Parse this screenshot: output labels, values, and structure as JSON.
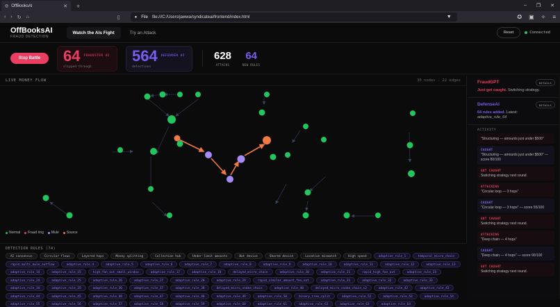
{
  "browser": {
    "tab_title": "OffBooksAI",
    "new_tab": "+",
    "url_label": "File",
    "url": "file:///C:/Users/jawwa/syndicateai/frontend/index.html",
    "window_controls": [
      "–",
      "❐",
      "✕"
    ]
  },
  "header": {
    "brand": "OffBooksAI",
    "subtitle": "FRAUD DETECTION",
    "tabs": [
      {
        "label": "Watch the AIs Fight",
        "active": true
      },
      {
        "label": "Try an Attack",
        "active": false
      }
    ],
    "reset_label": "Reset",
    "status": "Connected",
    "status_color": "#22c55e"
  },
  "stats": {
    "stop_label": "Stop Battle",
    "fraudster": {
      "value": "64",
      "tag": "FRAUDSTER AI",
      "caption": "slipped through",
      "color": "#ec3e63"
    },
    "defender": {
      "value": "564",
      "tag": "DEFENDER AI",
      "caption": "detections",
      "color": "#7c5cf0"
    },
    "attacks": {
      "value": "628",
      "label": "ATTACKS"
    },
    "new_rules": {
      "value": "64",
      "label": "NEW RULES"
    }
  },
  "graph": {
    "title": "LIVE MONEY FLOW",
    "meta": "30 nodes · 22 edges",
    "legend": [
      {
        "label": "Normal",
        "color": "#22c55e"
      },
      {
        "label": "Fraud ring",
        "color": "#ec3e63"
      },
      {
        "label": "Mule",
        "color": "#a78bfa"
      },
      {
        "label": "Source",
        "color": "#f07a45"
      }
    ]
  },
  "rules": {
    "title": "DETECTION RULES (74)",
    "base": [
      "AI consensus",
      "Circular flows",
      "Layered hops",
      "Money splitting",
      "Collection hub",
      "Under-limit amounts",
      "Bot device",
      "Shared device",
      "Location mismatch",
      "High speed"
    ],
    "adaptive": [
      "adaptive_rule_1",
      "temporal_micro_chain",
      "rapid_multi_mule_outflow",
      "adaptive_rule_4",
      "adaptive_rule_5",
      "adaptive_rule_6",
      "adaptive_rule_7",
      "adaptive_rule_8",
      "adaptive_rule_9",
      "adaptive_rule_10",
      "adaptive_rule_11",
      "adaptive_rule_12",
      "adaptive_rule_13",
      "adaptive_rule_14",
      "adaptive_rule_15",
      "high_fan_out_small_window",
      "adaptive_rule_17",
      "adaptive_rule_18",
      "delayed_micro_chain",
      "adaptive_rule_20",
      "adaptive_rule_21",
      "rapid_high_fan_out",
      "adaptive_rule_23",
      "adaptive_rule_24",
      "adaptive_rule_25",
      "adaptive_rule_26",
      "adaptive_rule_27",
      "adaptive_rule_28",
      "adaptive_rule_29",
      "rapid_similar_amount_fan_out",
      "adaptive_rule_31",
      "adaptive_rule_32",
      "adaptive_rule_33",
      "adaptive_rule_34",
      "adaptive_rule_35",
      "adaptive_rule_36",
      "adaptive_rule_37",
      "adaptive_rule_38",
      "delayed_micro_snake_chain",
      "adaptive_rule_40",
      "delayed_micro_snake_chain_v2",
      "adaptive_rule_42",
      "adaptive_rule_43",
      "adaptive_rule_44",
      "adaptive_rule_45",
      "adaptive_rule_46",
      "adaptive_rule_47",
      "adaptive_rule_48",
      "adaptive_rule_49",
      "adaptive_rule_50",
      "binary_tree_split",
      "adaptive_rule_52",
      "adaptive_rule_53",
      "adaptive_rule_54",
      "adaptive_rule_55",
      "adaptive_rule_56",
      "adaptive_rule_57",
      "adaptive_rule_58",
      "adaptive_rule_59",
      "adaptive_rule_60",
      "adaptive_rule_61",
      "adaptive_rule_62",
      "adaptive_rule_63",
      "adaptive_rule_64"
    ]
  },
  "sidebar": {
    "fraudgpt": {
      "name": "FraudGPT",
      "details": "DETAILS",
      "highlight": "Just got caught.",
      "rest": " Switching strategy."
    },
    "defenseai": {
      "name": "DefenseAI",
      "details": "DETAILS",
      "highlight": "64 rules added.",
      "rest": " Latest:",
      "latest": "adaptive_rule_64"
    },
    "activity_title": "ACTIVITY",
    "events": [
      {
        "type": "att",
        "kind": "",
        "text": "\"Structuring — amounts just under $500\""
      },
      {
        "type": "caught",
        "kind": "CAUGHT",
        "text": "\"Structuring — amounts just under $500\" — score 80/100"
      },
      {
        "type": "notc",
        "kind": "GOT CAUGHT",
        "text": "Switching strategy next round."
      },
      {
        "type": "att",
        "kind": "ATTACKING",
        "text": "\"Circular loop — 3 hops\""
      },
      {
        "type": "caught",
        "kind": "CAUGHT",
        "text": "\"Circular loop — 3 hops\" — score 55/100"
      },
      {
        "type": "notc",
        "kind": "GOT CAUGHT",
        "text": "Switching strategy next round."
      },
      {
        "type": "att",
        "kind": "ATTACKING",
        "text": "\"Deep chain — 4 hops\""
      },
      {
        "type": "caught",
        "kind": "CAUGHT",
        "text": "\"Deep chain — 4 hops\" — score 90/100"
      },
      {
        "type": "notc",
        "kind": "GOT CAUGHT",
        "text": "Switching strategy next round."
      }
    ]
  }
}
